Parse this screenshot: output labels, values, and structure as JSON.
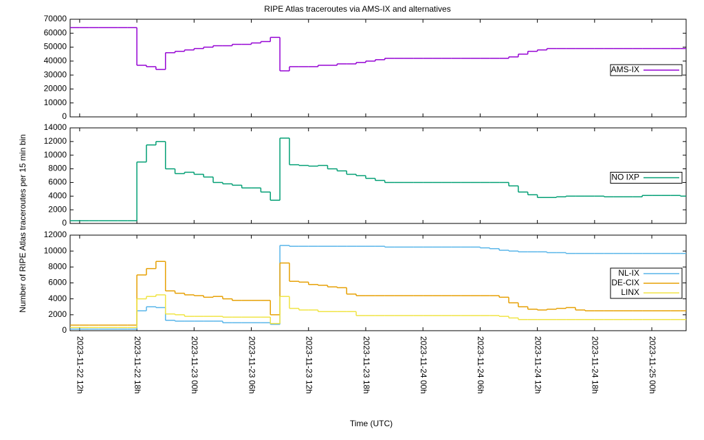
{
  "title": "RIPE Atlas traceroutes via AMS-IX and alternatives",
  "y_label": "Number of RIPE Atlas traceroutes per 15 min bin",
  "x_label": "Time (UTC)",
  "chart_data": [
    {
      "type": "line",
      "legend": "right",
      "x": [
        11,
        12,
        13,
        14,
        15,
        16,
        17,
        18,
        19,
        20,
        21,
        22,
        23,
        24,
        25,
        26,
        27,
        28,
        29,
        30,
        31,
        32,
        33,
        34,
        35,
        36,
        37,
        38,
        39,
        40,
        41,
        42,
        43,
        44,
        45,
        46,
        47,
        48,
        49,
        50,
        51,
        52,
        53,
        54,
        55,
        56,
        57,
        58,
        59,
        60,
        61,
        62,
        63,
        64,
        65,
        66,
        67,
        68,
        69,
        70,
        71,
        72,
        73,
        74,
        75
      ],
      "xlim": [
        11,
        75.6
      ],
      "ylim": [
        0,
        70000
      ],
      "yticks": [
        0,
        10000,
        20000,
        30000,
        40000,
        50000,
        60000,
        70000
      ],
      "series": [
        {
          "name": "AMS-IX",
          "color": "#9400d3",
          "values": [
            64000,
            64000,
            64000,
            64000,
            64000,
            64000,
            64000,
            37000,
            36000,
            34000,
            46000,
            47000,
            48000,
            49000,
            50000,
            51000,
            51000,
            52000,
            52000,
            53000,
            54000,
            57000,
            33000,
            36000,
            36000,
            36000,
            37000,
            37000,
            38000,
            38000,
            39000,
            40000,
            41000,
            42000,
            42000,
            42000,
            42000,
            42000,
            42000,
            42000,
            42000,
            42000,
            42000,
            42000,
            42000,
            42000,
            43000,
            45000,
            47000,
            48000,
            49000,
            49000,
            49000,
            49000,
            49000,
            49000,
            49000,
            49000,
            49000,
            49000,
            49000,
            49000,
            49000,
            49000,
            49000
          ]
        }
      ]
    },
    {
      "type": "line",
      "legend": "right",
      "x": [
        11,
        12,
        13,
        14,
        15,
        16,
        17,
        18,
        19,
        20,
        21,
        22,
        23,
        24,
        25,
        26,
        27,
        28,
        29,
        30,
        31,
        32,
        33,
        34,
        35,
        36,
        37,
        38,
        39,
        40,
        41,
        42,
        43,
        44,
        45,
        46,
        47,
        48,
        49,
        50,
        51,
        52,
        53,
        54,
        55,
        56,
        57,
        58,
        59,
        60,
        61,
        62,
        63,
        64,
        65,
        66,
        67,
        68,
        69,
        70,
        71,
        72,
        73,
        74,
        75
      ],
      "xlim": [
        11,
        75.6
      ],
      "ylim": [
        0,
        14000
      ],
      "yticks": [
        0,
        2000,
        4000,
        6000,
        8000,
        10000,
        12000,
        14000
      ],
      "series": [
        {
          "name": "NO IXP",
          "color": "#009e73",
          "values": [
            400,
            400,
            400,
            400,
            400,
            400,
            400,
            9000,
            11500,
            12000,
            8000,
            7300,
            7500,
            7200,
            6800,
            6000,
            5800,
            5600,
            5200,
            5200,
            4600,
            3400,
            12500,
            8600,
            8500,
            8400,
            8500,
            8000,
            7700,
            7200,
            7000,
            6600,
            6300,
            6000,
            6000,
            6000,
            6000,
            6000,
            6000,
            6000,
            6000,
            6000,
            6000,
            6000,
            6000,
            6000,
            5500,
            4600,
            4200,
            3800,
            3800,
            3900,
            4000,
            4000,
            4000,
            4000,
            3900,
            3900,
            3900,
            3900,
            4100,
            4100,
            4100,
            4100,
            4000
          ]
        }
      ]
    },
    {
      "type": "line",
      "legend": "right",
      "x": [
        11,
        12,
        13,
        14,
        15,
        16,
        17,
        18,
        19,
        20,
        21,
        22,
        23,
        24,
        25,
        26,
        27,
        28,
        29,
        30,
        31,
        32,
        33,
        34,
        35,
        36,
        37,
        38,
        39,
        40,
        41,
        42,
        43,
        44,
        45,
        46,
        47,
        48,
        49,
        50,
        51,
        52,
        53,
        54,
        55,
        56,
        57,
        58,
        59,
        60,
        61,
        62,
        63,
        64,
        65,
        66,
        67,
        68,
        69,
        70,
        71,
        72,
        73,
        74,
        75
      ],
      "xlim": [
        11,
        75.6
      ],
      "ylim": [
        0,
        12000
      ],
      "yticks": [
        0,
        2000,
        4000,
        6000,
        8000,
        10000,
        12000
      ],
      "xticks": [
        {
          "value": 12,
          "label": "2023-11-22 12h"
        },
        {
          "value": 18,
          "label": "2023-11-22 18h"
        },
        {
          "value": 24,
          "label": "2023-11-23 00h"
        },
        {
          "value": 30,
          "label": "2023-11-23 06h"
        },
        {
          "value": 36,
          "label": "2023-11-23 12h"
        },
        {
          "value": 42,
          "label": "2023-11-23 18h"
        },
        {
          "value": 48,
          "label": "2023-11-24 00h"
        },
        {
          "value": 54,
          "label": "2023-11-24 06h"
        },
        {
          "value": 60,
          "label": "2023-11-24 12h"
        },
        {
          "value": 66,
          "label": "2023-11-24 18h"
        },
        {
          "value": 72,
          "label": "2023-11-25 00h"
        }
      ],
      "series": [
        {
          "name": "NL-IX",
          "color": "#56b4e9",
          "values": [
            200,
            200,
            200,
            200,
            200,
            200,
            200,
            2500,
            3000,
            2900,
            1300,
            1200,
            1200,
            1200,
            1200,
            1200,
            1000,
            1000,
            1000,
            1000,
            1000,
            800,
            10700,
            10600,
            10600,
            10600,
            10600,
            10600,
            10600,
            10600,
            10600,
            10600,
            10600,
            10500,
            10500,
            10500,
            10500,
            10500,
            10500,
            10500,
            10500,
            10500,
            10500,
            10400,
            10300,
            10100,
            10000,
            9900,
            9900,
            9900,
            9800,
            9800,
            9700,
            9700,
            9700,
            9700,
            9700,
            9700,
            9700,
            9700,
            9700,
            9700,
            9700,
            9700,
            9700
          ]
        },
        {
          "name": "DE-CIX",
          "color": "#e69f00",
          "values": [
            700,
            700,
            700,
            700,
            700,
            700,
            700,
            7000,
            7800,
            8700,
            5000,
            4700,
            4500,
            4400,
            4200,
            4300,
            4000,
            3800,
            3800,
            3800,
            3800,
            2000,
            8500,
            6200,
            6100,
            5800,
            5700,
            5500,
            5400,
            4600,
            4400,
            4400,
            4400,
            4400,
            4400,
            4400,
            4400,
            4400,
            4400,
            4400,
            4400,
            4400,
            4400,
            4400,
            4400,
            4200,
            3500,
            3000,
            2700,
            2600,
            2700,
            2800,
            2900,
            2600,
            2500,
            2500,
            2500,
            2500,
            2500,
            2500,
            2500,
            2500,
            2500,
            2500,
            2500
          ]
        },
        {
          "name": "LINX",
          "color": "#f0e442",
          "values": [
            400,
            400,
            400,
            400,
            400,
            400,
            400,
            4000,
            4300,
            4500,
            2100,
            2000,
            1800,
            1800,
            1800,
            1800,
            1700,
            1700,
            1700,
            1700,
            1700,
            900,
            4300,
            2800,
            2600,
            2600,
            2400,
            2400,
            2400,
            2400,
            1900,
            1900,
            1900,
            1900,
            1900,
            1900,
            1900,
            1900,
            1900,
            1900,
            1900,
            1900,
            1900,
            1900,
            1900,
            1800,
            1600,
            1400,
            1400,
            1400,
            1400,
            1400,
            1400,
            1400,
            1400,
            1400,
            1400,
            1400,
            1400,
            1400,
            1400,
            1400,
            1400,
            1400,
            1400
          ]
        }
      ]
    }
  ]
}
